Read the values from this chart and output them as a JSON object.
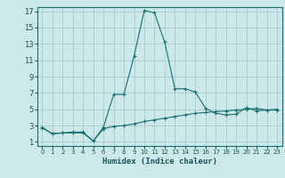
{
  "xlabel": "Humidex (Indice chaleur)",
  "ylabel": "",
  "bg_color": "#cce8e8",
  "grid_color": "#aacccc",
  "line_color": "#1a7070",
  "tick_color": "#1a5555",
  "xlim": [
    -0.5,
    23.5
  ],
  "ylim": [
    0.5,
    17.5
  ],
  "xticks": [
    0,
    1,
    2,
    3,
    4,
    5,
    6,
    7,
    8,
    9,
    10,
    11,
    12,
    13,
    14,
    15,
    16,
    17,
    18,
    19,
    20,
    21,
    22,
    23
  ],
  "yticks": [
    1,
    3,
    5,
    7,
    9,
    11,
    13,
    15,
    17
  ],
  "series1_x": [
    0,
    1,
    2,
    3,
    4,
    5,
    6,
    7,
    8,
    9,
    10,
    11,
    12,
    13,
    14,
    15,
    16,
    17,
    18,
    19,
    20,
    21,
    22,
    23
  ],
  "series1_y": [
    2.7,
    2.0,
    2.1,
    2.1,
    2.1,
    1.1,
    2.6,
    2.9,
    3.0,
    3.2,
    3.5,
    3.7,
    3.9,
    4.1,
    4.3,
    4.5,
    4.6,
    4.7,
    4.8,
    4.9,
    5.0,
    5.1,
    4.9,
    5.0
  ],
  "series2_x": [
    0,
    1,
    2,
    3,
    4,
    5,
    6,
    7,
    8,
    9,
    10,
    11,
    12,
    13,
    14,
    15,
    16,
    17,
    18,
    19,
    20,
    21,
    22,
    23
  ],
  "series2_y": [
    2.8,
    2.0,
    2.1,
    2.2,
    2.2,
    1.1,
    2.8,
    6.8,
    6.8,
    11.5,
    17.1,
    16.8,
    13.2,
    7.5,
    7.5,
    7.1,
    5.1,
    4.5,
    4.3,
    4.4,
    5.2,
    4.8,
    4.9,
    4.9
  ]
}
